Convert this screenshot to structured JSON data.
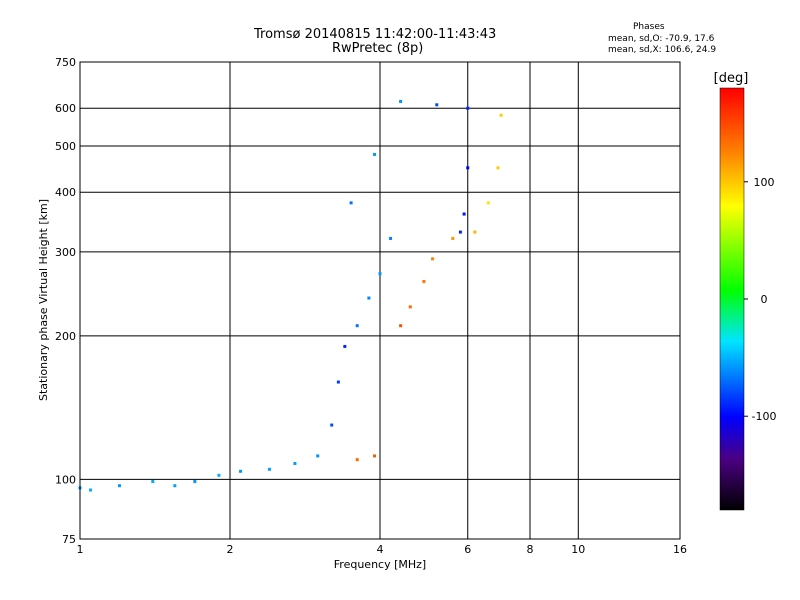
{
  "header": {
    "title_line1": "Tromsø 20140815 11:42:00-11:43:43",
    "title_line2": "RwPretec (8p)"
  },
  "phases_box": {
    "title": "Phases",
    "line_O": "mean, sd,O: -70.9, 17.6",
    "line_X": "mean, sd,X: 106.6, 24.9"
  },
  "colorbar": {
    "label": "[deg]",
    "min": -180,
    "max": 180,
    "ticks": [
      {
        "value": 100,
        "label": "100"
      },
      {
        "value": 0,
        "label": "0"
      },
      {
        "value": -100,
        "label": "-100"
      }
    ]
  },
  "chart_data": {
    "type": "scatter",
    "title": "Tromsø 20140815 11:42:00-11:43:43",
    "subtitle": "RwPretec (8p)",
    "xlabel": "Frequency [MHz]",
    "ylabel": "Stationary phase Virtual Height [km]",
    "xscale": "log",
    "yscale": "log",
    "xlim": [
      1,
      16
    ],
    "ylim": [
      75,
      750
    ],
    "xticks": [
      {
        "value": 1,
        "label": "1"
      },
      {
        "value": 2,
        "label": "2"
      },
      {
        "value": 4,
        "label": "4"
      },
      {
        "value": 6,
        "label": "6"
      },
      {
        "value": 8,
        "label": "8"
      },
      {
        "value": 10,
        "label": "10"
      },
      {
        "value": 16,
        "label": "16"
      }
    ],
    "yticks": [
      {
        "value": 75,
        "label": "75"
      },
      {
        "value": 100,
        "label": "100"
      },
      {
        "value": 200,
        "label": "200"
      },
      {
        "value": 300,
        "label": "300"
      },
      {
        "value": 400,
        "label": "400"
      },
      {
        "value": 500,
        "label": "500"
      },
      {
        "value": 600,
        "label": "600"
      },
      {
        "value": 750,
        "label": "750"
      }
    ],
    "grid": true,
    "color_encoding": "phase (deg)",
    "series": [
      {
        "points": [
          {
            "x": 1.0,
            "y": 96,
            "phase": -60
          },
          {
            "x": 1.05,
            "y": 95,
            "phase": -55
          },
          {
            "x": 1.2,
            "y": 97,
            "phase": -60
          },
          {
            "x": 1.4,
            "y": 99,
            "phase": -55
          },
          {
            "x": 1.55,
            "y": 97,
            "phase": -58
          },
          {
            "x": 1.7,
            "y": 99,
            "phase": -60
          },
          {
            "x": 1.9,
            "y": 102,
            "phase": -55
          },
          {
            "x": 2.1,
            "y": 104,
            "phase": -60
          },
          {
            "x": 2.4,
            "y": 105,
            "phase": -58
          },
          {
            "x": 2.7,
            "y": 108,
            "phase": -60
          },
          {
            "x": 3.0,
            "y": 112,
            "phase": -62
          },
          {
            "x": 3.2,
            "y": 130,
            "phase": -80
          },
          {
            "x": 3.3,
            "y": 160,
            "phase": -85
          },
          {
            "x": 3.4,
            "y": 190,
            "phase": -90
          },
          {
            "x": 3.6,
            "y": 210,
            "phase": -70
          },
          {
            "x": 3.8,
            "y": 240,
            "phase": -65
          },
          {
            "x": 4.0,
            "y": 270,
            "phase": -60
          },
          {
            "x": 4.2,
            "y": 320,
            "phase": -65
          },
          {
            "x": 3.5,
            "y": 380,
            "phase": -70
          },
          {
            "x": 3.9,
            "y": 480,
            "phase": -60
          },
          {
            "x": 4.4,
            "y": 620,
            "phase": -62
          },
          {
            "x": 5.2,
            "y": 610,
            "phase": -80
          },
          {
            "x": 6.0,
            "y": 600,
            "phase": -90
          },
          {
            "x": 6.0,
            "y": 450,
            "phase": -100
          },
          {
            "x": 5.9,
            "y": 360,
            "phase": -95
          },
          {
            "x": 5.8,
            "y": 330,
            "phase": -90
          }
        ]
      },
      {
        "points": [
          {
            "x": 4.4,
            "y": 210,
            "phase": 150
          },
          {
            "x": 4.6,
            "y": 230,
            "phase": 140
          },
          {
            "x": 4.9,
            "y": 260,
            "phase": 135
          },
          {
            "x": 5.1,
            "y": 290,
            "phase": 130
          },
          {
            "x": 5.6,
            "y": 320,
            "phase": 120
          },
          {
            "x": 6.2,
            "y": 330,
            "phase": 110
          },
          {
            "x": 6.6,
            "y": 380,
            "phase": 90
          },
          {
            "x": 6.9,
            "y": 450,
            "phase": 100
          },
          {
            "x": 7.0,
            "y": 580,
            "phase": 100
          },
          {
            "x": 3.6,
            "y": 110,
            "phase": 140
          },
          {
            "x": 3.9,
            "y": 112,
            "phase": 145
          }
        ]
      }
    ]
  }
}
